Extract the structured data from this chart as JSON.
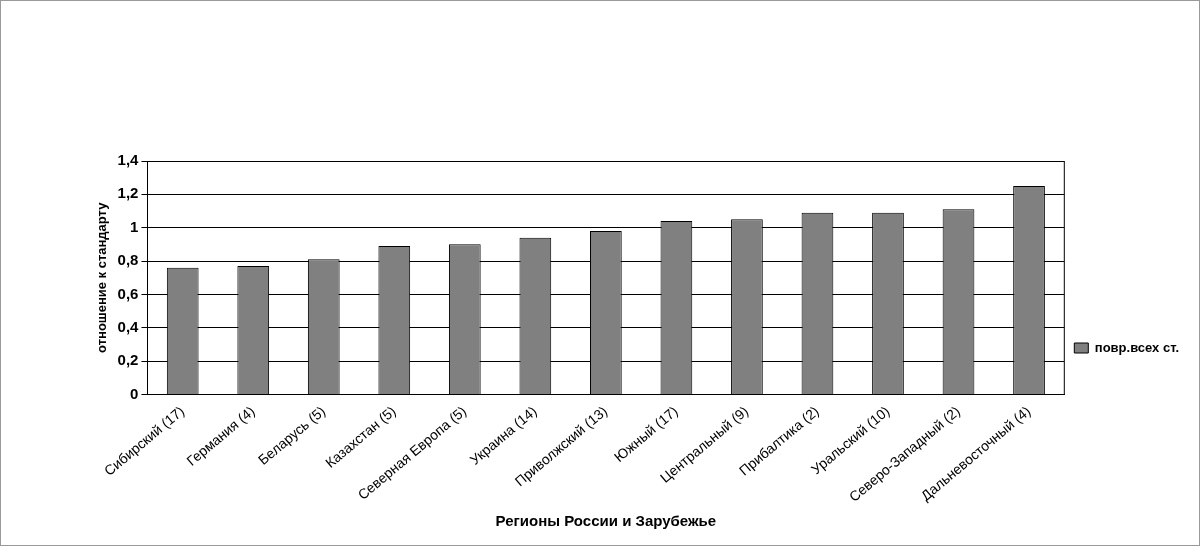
{
  "chart_data": {
    "type": "bar",
    "xlabel": "Регионы России и Зарубежье",
    "ylabel": "отношение к стандарту",
    "categories": [
      "Сибирский (17)",
      "Германия (4)",
      "Беларусь (5)",
      "Казахстан (5)",
      "Северная Европа (5)",
      "Украина (14)",
      "Приволжский (13)",
      "Южный (17)",
      "Центральный (9)",
      "Прибалтика (2)",
      "Уральский (10)",
      "Северо-Западный (2)",
      "Дальневосточный (4)"
    ],
    "series": [
      {
        "name": "повр.всех ст.",
        "color": "#808080",
        "values": [
          0.76,
          0.77,
          0.81,
          0.89,
          0.9,
          0.94,
          0.98,
          1.04,
          1.05,
          1.09,
          1.09,
          1.11,
          1.25
        ]
      }
    ],
    "ylim": [
      0,
      1.4
    ],
    "yticks": [
      {
        "value": 0,
        "label": "0"
      },
      {
        "value": 0.2,
        "label": "0,2"
      },
      {
        "value": 0.4,
        "label": "0,4"
      },
      {
        "value": 0.6,
        "label": "0,6"
      },
      {
        "value": 0.8,
        "label": "0,8"
      },
      {
        "value": 1,
        "label": "1"
      },
      {
        "value": 1.2,
        "label": "1,2"
      },
      {
        "value": 1.4,
        "label": "1,4"
      }
    ],
    "grid": "y",
    "legend": "right"
  }
}
